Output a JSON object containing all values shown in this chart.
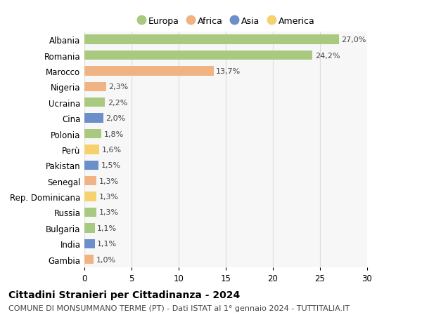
{
  "categories": [
    "Albania",
    "Romania",
    "Marocco",
    "Nigeria",
    "Ucraina",
    "Cina",
    "Polonia",
    "Perù",
    "Pakistan",
    "Senegal",
    "Rep. Dominicana",
    "Russia",
    "Bulgaria",
    "India",
    "Gambia"
  ],
  "values": [
    27.0,
    24.2,
    13.7,
    2.3,
    2.2,
    2.0,
    1.8,
    1.6,
    1.5,
    1.3,
    1.3,
    1.3,
    1.1,
    1.1,
    1.0
  ],
  "labels": [
    "27,0%",
    "24,2%",
    "13,7%",
    "2,3%",
    "2,2%",
    "2,0%",
    "1,8%",
    "1,6%",
    "1,5%",
    "1,3%",
    "1,3%",
    "1,3%",
    "1,1%",
    "1,1%",
    "1,0%"
  ],
  "colors": [
    "#a8c97f",
    "#a8c97f",
    "#f0b484",
    "#f0b484",
    "#a8c97f",
    "#6b8fc9",
    "#a8c97f",
    "#f5d26e",
    "#6b8fc9",
    "#f0b484",
    "#f5d26e",
    "#a8c97f",
    "#a8c97f",
    "#6b8fc9",
    "#f0b484"
  ],
  "legend_labels": [
    "Europa",
    "Africa",
    "Asia",
    "America"
  ],
  "legend_colors": [
    "#a8c97f",
    "#f0b484",
    "#6b8fc9",
    "#f5d26e"
  ],
  "title": "Cittadini Stranieri per Cittadinanza - 2024",
  "subtitle": "COMUNE DI MONSUMMANO TERME (PT) - Dati ISTAT al 1° gennaio 2024 - TUTTITALIA.IT",
  "xlim": [
    0,
    30
  ],
  "xticks": [
    0,
    5,
    10,
    15,
    20,
    25,
    30
  ],
  "background_color": "#ffffff",
  "plot_bg_color": "#f7f7f7",
  "grid_color": "#dddddd",
  "bar_height": 0.6,
  "title_fontsize": 10,
  "subtitle_fontsize": 8,
  "tick_fontsize": 8.5,
  "label_fontsize": 8,
  "legend_fontsize": 9
}
